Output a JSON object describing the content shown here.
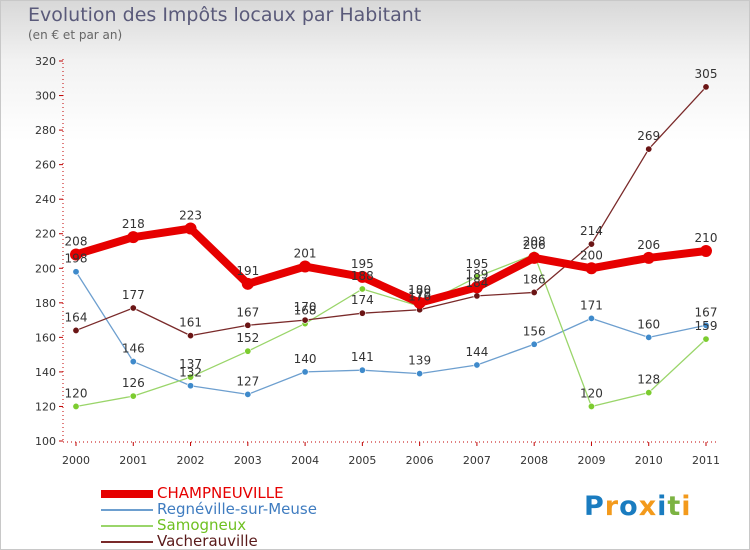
{
  "header": {
    "title": "Evolution des Impôts locaux par Habitant",
    "subtitle": "(en € et par an)"
  },
  "logo": {
    "text": "Proxiti",
    "colors": [
      "#1a7cc0",
      "#f39a1c",
      "#1a7cc0",
      "#f39a1c",
      "#1a7cc0",
      "#7cb342",
      "#f39a1c"
    ]
  },
  "chart_data": {
    "type": "line",
    "title": "Evolution des Impôts locaux par Habitant",
    "subtitle": "(en € et par an)",
    "xlabel": "",
    "ylabel": "",
    "categories": [
      "2000",
      "2001",
      "2002",
      "2003",
      "2004",
      "2005",
      "2006",
      "2007",
      "2008",
      "2009",
      "2010",
      "2011"
    ],
    "ylim": [
      100,
      320
    ],
    "ytick_step": 20,
    "grid": false,
    "legend_position": "bottom-left",
    "series": [
      {
        "name": "CHAMPNEUVILLE",
        "color": "#e60000",
        "point_color": "#e60000",
        "width": 8,
        "values": [
          208,
          218,
          223,
          191,
          201,
          195,
          180,
          189,
          206,
          200,
          206,
          210
        ],
        "labels": [
          "208",
          "218",
          "223",
          "191",
          "201",
          "195",
          "180",
          "189",
          "206",
          "200",
          "206",
          "210"
        ]
      },
      {
        "name": "Regnéville-sur-Meuse",
        "color": "#6d9fcf",
        "point_color": "#3f8acb",
        "width": 1.3,
        "values": [
          198,
          146,
          132,
          127,
          140,
          141,
          139,
          144,
          156,
          171,
          160,
          167
        ],
        "labels": [
          "198",
          "146",
          "132",
          "127",
          "140",
          "141",
          "139",
          "144",
          "156",
          "171",
          "160",
          "167"
        ]
      },
      {
        "name": "Samogneux",
        "color": "#9ad56a",
        "point_color": "#7ccc2f",
        "width": 1.3,
        "values": [
          120,
          126,
          137,
          152,
          168,
          188,
          178,
          195,
          208,
          120,
          128,
          159
        ],
        "labels": [
          "120",
          "126",
          "137",
          "152",
          "168",
          "188",
          "178",
          "195",
          "208",
          "120",
          "128",
          "159"
        ]
      },
      {
        "name": "Vacherauville",
        "color": "#7a2a2a",
        "point_color": "#6b1515",
        "width": 1.3,
        "values": [
          164,
          177,
          161,
          167,
          170,
          174,
          176,
          184,
          186,
          214,
          269,
          305
        ],
        "labels": [
          "164",
          "177",
          "161",
          "167",
          "170",
          "174",
          "176",
          "184",
          "186",
          "214",
          "269",
          "305"
        ]
      }
    ]
  }
}
